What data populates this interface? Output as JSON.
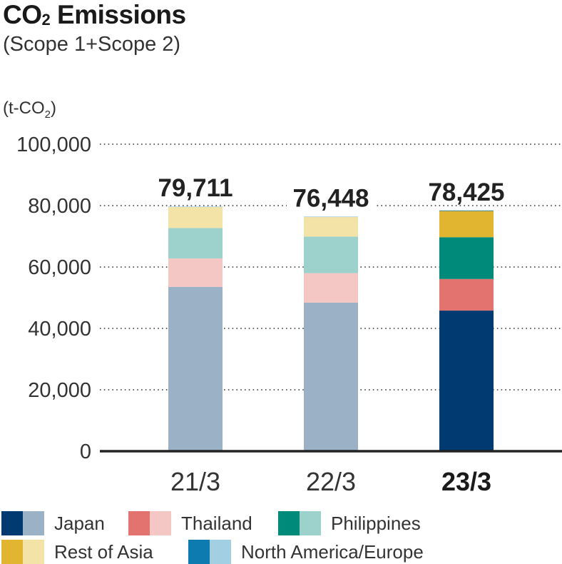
{
  "chart_data": {
    "type": "bar",
    "stacked": true,
    "title_main": "CO",
    "title_sub": "2",
    "title_rest": " Emissions",
    "subtitle": "(Scope 1+Scope 2)",
    "ylabel_main": "(t-CO",
    "ylabel_sub": "2",
    "ylabel_end": ")",
    "ylim": [
      0,
      100000
    ],
    "yticks": [
      {
        "value": 0,
        "label": "0"
      },
      {
        "value": 20000,
        "label": "20,000"
      },
      {
        "value": 40000,
        "label": "40,000"
      },
      {
        "value": 60000,
        "label": "60,000"
      },
      {
        "value": 80000,
        "label": "80,000"
      },
      {
        "value": 100000,
        "label": "100,000"
      }
    ],
    "grid": true,
    "legend_position": "bottom",
    "categories": [
      "21/3",
      "22/3",
      "23/3"
    ],
    "totals": [
      {
        "value": 79711,
        "label": "79,711"
      },
      {
        "value": 76448,
        "label": "76,448"
      },
      {
        "value": 78425,
        "label": "78,425"
      }
    ],
    "highlight_category": "23/3",
    "series": [
      {
        "name": "Japan",
        "values": [
          53500,
          48400,
          45800
        ],
        "colors": [
          "#9bb1c6",
          "#9bb1c6",
          "#003a70"
        ],
        "legend_colors": [
          "#003a70",
          "#9bb1c6"
        ]
      },
      {
        "name": "Thailand",
        "values": [
          9300,
          9600,
          10300
        ],
        "colors": [
          "#f4c6c4",
          "#f4c6c4",
          "#e3736f"
        ],
        "legend_colors": [
          "#e3736f",
          "#f4c6c4"
        ]
      },
      {
        "name": "Philippines",
        "values": [
          9900,
          11900,
          13600
        ],
        "colors": [
          "#9dd1cc",
          "#9dd1cc",
          "#008a7a"
        ],
        "legend_colors": [
          "#008a7a",
          "#9dd1cc"
        ]
      },
      {
        "name": "Rest of Asia",
        "values": [
          6900,
          6400,
          8600
        ],
        "colors": [
          "#f4e3a6",
          "#f4e3a6",
          "#e2b531"
        ],
        "legend_colors": [
          "#e2b531",
          "#f4e3a6"
        ]
      },
      {
        "name": "North America/Europe",
        "values": [
          111,
          148,
          125
        ],
        "colors": [
          "#a3cfe3",
          "#a3cfe3",
          "#0d7bb0"
        ],
        "legend_colors": [
          "#0d7bb0",
          "#a3cfe3"
        ]
      }
    ]
  }
}
